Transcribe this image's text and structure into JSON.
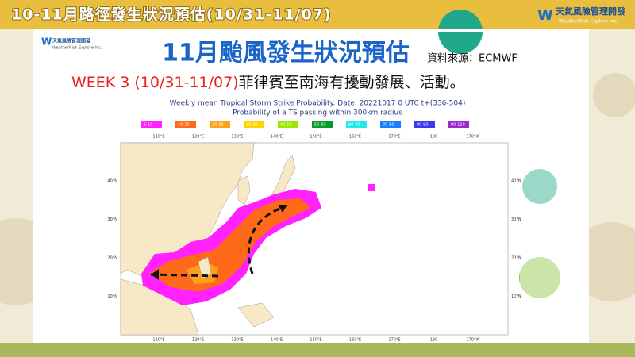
{
  "header": {
    "title": "10-11月路徑發生狀況預估(10/31-11/07)",
    "logo_name": "天氣風險管理開發",
    "logo_subtitle": "WeatherRisk Explore Inc."
  },
  "slide": {
    "logo_name": "天氣風險管理開發",
    "logo_subtitle": "WeatherRisk Explore Inc.",
    "title": "11月颱風發生狀況預估",
    "source": "資料來源：ECMWF",
    "week_label": "WEEK 3 (10/31-11/07)",
    "week_text": "菲律賓至南海有擾動發展、活動。"
  },
  "map": {
    "title": "Weekly mean Tropical Storm Strike Probability. Date: 20221017  0 UTC   t+(336-504)",
    "subtitle": "Probability of a TS passing within  300km radius",
    "legend": [
      {
        "label": "5-10",
        "color": "#ff22ff"
      },
      {
        "label": "10-20",
        "color": "#ff6a1a"
      },
      {
        "label": "20-30",
        "color": "#ffa01a"
      },
      {
        "label": "30-40",
        "color": "#ffd400"
      },
      {
        "label": "40-50",
        "color": "#99e600"
      },
      {
        "label": "50-60",
        "color": "#0a9a2a"
      },
      {
        "label": "60-70",
        "color": "#22e8f0"
      },
      {
        "label": "70-80",
        "color": "#1a7cff"
      },
      {
        "label": "80-90",
        "color": "#3a3af0"
      },
      {
        "label": "90-110",
        "color": "#9a2ad0"
      }
    ],
    "lon_labels": [
      "110°E",
      "120°E",
      "130°E",
      "140°E",
      "150°E",
      "160°E",
      "170°E",
      "180",
      "170°W"
    ],
    "lat_labels": [
      "40°N",
      "30°N",
      "20°N",
      "10°N"
    ]
  }
}
